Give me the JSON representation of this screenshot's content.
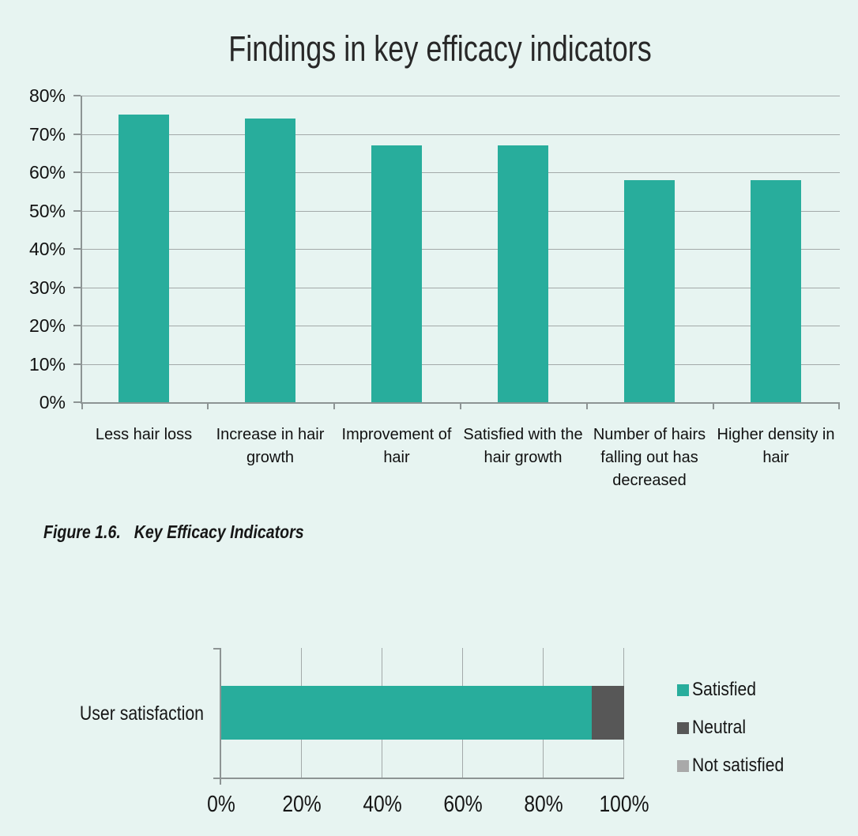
{
  "colors": {
    "teal": "#28ad9c",
    "dark_gray": "#575757",
    "light_gray": "#a9a9a9",
    "background": "#e7f4f1",
    "gridline": "#a3a9a9",
    "axis": "#8d9494"
  },
  "chart_data": [
    {
      "type": "bar",
      "title": "Findings in key efficacy indicators",
      "categories": [
        "Less hair loss",
        "Increase in hair growth",
        "Improvement of hair",
        "Satisfied with the hair growth",
        "Number of hairs falling out has decreased",
        "Higher density in hair"
      ],
      "values": [
        75,
        74,
        67,
        67,
        58,
        58
      ],
      "value_unit": "%",
      "xlabel": "",
      "ylabel": "",
      "ylim": [
        0,
        80
      ],
      "yticks": [
        "0%",
        "10%",
        "20%",
        "30%",
        "40%",
        "50%",
        "60%",
        "70%",
        "80%"
      ],
      "grid": "horizontal",
      "bar_color": "#28ad9c"
    },
    {
      "type": "stacked_bar_horizontal",
      "category": "User satisfaction",
      "series": [
        {
          "name": "Satisfied",
          "value": 92,
          "color": "#28ad9c"
        },
        {
          "name": "Neutral",
          "value": 8,
          "color": "#575757"
        },
        {
          "name": "Not satisfied",
          "value": 0,
          "color": "#a9a9a9"
        }
      ],
      "xlim": [
        0,
        100
      ],
      "xticks": [
        "0%",
        "20%",
        "40%",
        "60%",
        "80%",
        "100%"
      ],
      "grid": "vertical",
      "legend_position": "right"
    }
  ],
  "caption": {
    "number": "Figure 1.6.",
    "title": "Key Efficacy Indicators"
  }
}
